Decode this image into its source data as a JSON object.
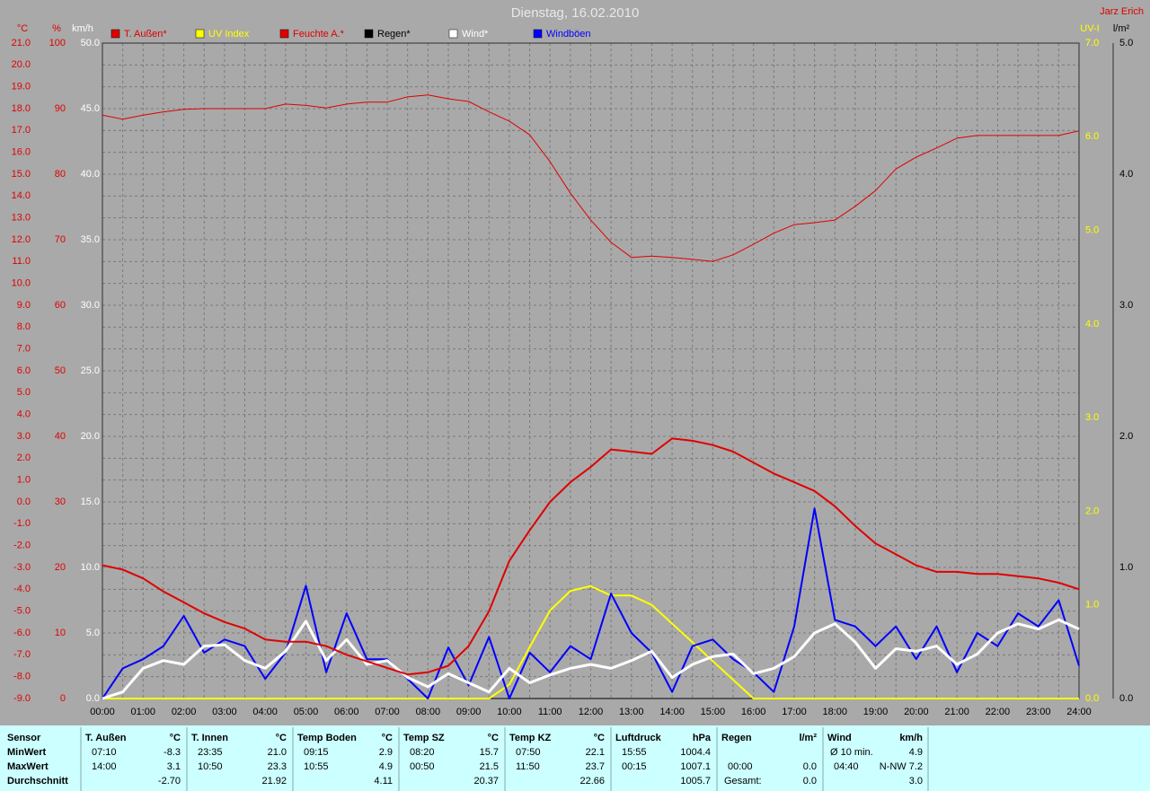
{
  "chart_data": {
    "type": "line",
    "title": "Dienstag, 16.02.2010",
    "author": "Jarz Erich",
    "grid": true,
    "x": [
      "00:00",
      "00:30",
      "01:00",
      "01:30",
      "02:00",
      "02:30",
      "03:00",
      "03:30",
      "04:00",
      "04:30",
      "05:00",
      "05:30",
      "06:00",
      "06:30",
      "07:00",
      "07:30",
      "08:00",
      "08:30",
      "09:00",
      "09:30",
      "10:00",
      "10:30",
      "11:00",
      "11:30",
      "12:00",
      "12:30",
      "13:00",
      "13:30",
      "14:00",
      "14:30",
      "15:00",
      "15:30",
      "16:00",
      "16:30",
      "17:00",
      "17:30",
      "18:00",
      "18:30",
      "19:00",
      "19:30",
      "20:00",
      "20:30",
      "21:00",
      "21:30",
      "22:00",
      "22:30",
      "23:00",
      "23:30",
      "24:00"
    ],
    "axes": [
      {
        "label": "°C",
        "color": "#e00000",
        "lim": [
          -9,
          21
        ],
        "ticks": [
          {
            "value": -9,
            "label": "-9.0"
          },
          {
            "value": -8,
            "label": "-8.0"
          },
          {
            "value": -7,
            "label": "-7.0"
          },
          {
            "value": -6,
            "label": "-6.0"
          },
          {
            "value": -5,
            "label": "-5.0"
          },
          {
            "value": -4,
            "label": "-4.0"
          },
          {
            "value": -3,
            "label": "-3.0"
          },
          {
            "value": -2,
            "label": "-2.0"
          },
          {
            "value": -1,
            "label": "-1.0"
          },
          {
            "value": 0,
            "label": "0.0"
          },
          {
            "value": 1,
            "label": "1.0"
          },
          {
            "value": 2,
            "label": "2.0"
          },
          {
            "value": 3,
            "label": "3.0"
          },
          {
            "value": 4,
            "label": "4.0"
          },
          {
            "value": 5,
            "label": "5.0"
          },
          {
            "value": 6,
            "label": "6.0"
          },
          {
            "value": 7,
            "label": "7.0"
          },
          {
            "value": 8,
            "label": "8.0"
          },
          {
            "value": 9,
            "label": "9.0"
          },
          {
            "value": 10,
            "label": "10.0"
          },
          {
            "value": 11,
            "label": "11.0"
          },
          {
            "value": 12,
            "label": "12.0"
          },
          {
            "value": 13,
            "label": "13.0"
          },
          {
            "value": 14,
            "label": "14.0"
          },
          {
            "value": 15,
            "label": "15.0"
          },
          {
            "value": 16,
            "label": "16.0"
          },
          {
            "value": 17,
            "label": "17.0"
          },
          {
            "value": 18,
            "label": "18.0"
          },
          {
            "value": 19,
            "label": "19.0"
          },
          {
            "value": 20,
            "label": "20.0"
          },
          {
            "value": 21,
            "label": "21.0"
          }
        ]
      },
      {
        "label": "%",
        "color": "#e00000",
        "lim": [
          0,
          100
        ],
        "ticks": [
          0,
          10,
          20,
          30,
          40,
          50,
          60,
          70,
          80,
          90,
          100
        ]
      },
      {
        "label": "km/h",
        "color": "#ffffff",
        "lim": [
          0,
          50
        ],
        "ticks": [
          {
            "value": 0,
            "label": "0.0"
          },
          {
            "value": 5,
            "label": "5.0"
          },
          {
            "value": 10,
            "label": "10.0"
          },
          {
            "value": 15,
            "label": "15.0"
          },
          {
            "value": 20,
            "label": "20.0"
          },
          {
            "value": 25,
            "label": "25.0"
          },
          {
            "value": 30,
            "label": "30.0"
          },
          {
            "value": 35,
            "label": "35.0"
          },
          {
            "value": 40,
            "label": "40.0"
          },
          {
            "value": 45,
            "label": "45.0"
          },
          {
            "value": 50,
            "label": "50.0"
          }
        ]
      },
      {
        "label": "UV-I",
        "color": "#ffff00",
        "lim": [
          0,
          7
        ],
        "ticks": [
          {
            "value": 0,
            "label": "0.0"
          },
          {
            "value": 1,
            "label": "1.0"
          },
          {
            "value": 2,
            "label": "2.0"
          },
          {
            "value": 3,
            "label": "3.0"
          },
          {
            "value": 4,
            "label": "4.0"
          },
          {
            "value": 5,
            "label": "5.0"
          },
          {
            "value": 6,
            "label": "6.0"
          },
          {
            "value": 7,
            "label": "7.0"
          }
        ]
      },
      {
        "label": "l/m²",
        "color": "#000000",
        "lim": [
          0,
          5
        ],
        "ticks": [
          {
            "value": 0,
            "label": "0.0"
          },
          {
            "value": 1,
            "label": "1.0"
          },
          {
            "value": 2,
            "label": "2.0"
          },
          {
            "value": 3,
            "label": "3.0"
          },
          {
            "value": 4,
            "label": "4.0"
          },
          {
            "value": 5,
            "label": "5.0"
          }
        ]
      }
    ],
    "series": [
      {
        "name": "T. Außen*",
        "color": "#e00000",
        "axis": 0,
        "values": [
          -2.9,
          -3.1,
          -3.5,
          -4.1,
          -4.6,
          -5.1,
          -5.5,
          -5.8,
          -6.3,
          -6.4,
          -6.4,
          -6.6,
          -7.0,
          -7.3,
          -7.6,
          -7.9,
          -7.8,
          -7.5,
          -6.6,
          -5.0,
          -2.7,
          -1.3,
          0.0,
          0.9,
          1.6,
          2.4,
          2.3,
          2.2,
          2.9,
          2.8,
          2.6,
          2.3,
          1.8,
          1.3,
          0.9,
          0.5,
          -0.2,
          -1.1,
          -1.9,
          -2.4,
          -2.9,
          -3.2,
          -3.2,
          -3.3,
          -3.3,
          -3.4,
          -3.5,
          -3.7,
          -4.0
        ]
      },
      {
        "name": "UV Index",
        "color": "#ffff00",
        "axis": 3,
        "values": [
          0,
          0,
          0,
          0,
          0,
          0,
          0,
          0,
          0,
          0,
          0,
          0,
          0,
          0,
          0,
          0,
          0,
          0,
          0,
          0,
          0.15,
          0.55,
          0.94,
          1.15,
          1.2,
          1.1,
          1.1,
          1.0,
          0.8,
          0.6,
          0.4,
          0.2,
          0,
          0,
          0,
          0,
          0,
          0,
          0,
          0,
          0,
          0,
          0,
          0,
          0,
          0,
          0,
          0,
          0
        ]
      },
      {
        "name": "Feuchte A.*",
        "color": "#e00000",
        "axis": 1,
        "values": [
          89.0,
          88.4,
          89.0,
          89.5,
          89.9,
          90.0,
          90.0,
          90.0,
          90.0,
          90.7,
          90.5,
          90.1,
          90.7,
          91.0,
          91.0,
          91.8,
          92.1,
          91.5,
          91.1,
          89.5,
          88.1,
          86.0,
          81.9,
          77.1,
          73.0,
          69.6,
          67.3,
          67.5,
          67.3,
          67.0,
          66.7,
          67.7,
          69.3,
          71.0,
          72.3,
          72.6,
          73.0,
          75.1,
          77.5,
          80.8,
          82.6,
          84.0,
          85.5,
          85.9,
          85.9,
          85.9,
          85.9,
          85.9,
          86.6
        ]
      },
      {
        "name": "Regen*",
        "color": "#000000",
        "axis": 4,
        "values": [
          0,
          0,
          0,
          0,
          0,
          0,
          0,
          0,
          0,
          0,
          0,
          0,
          0,
          0,
          0,
          0,
          0,
          0,
          0,
          0,
          0,
          0,
          0,
          0,
          0,
          0,
          0,
          0,
          0,
          0,
          0,
          0,
          0,
          0,
          0,
          0,
          0,
          0,
          0,
          0,
          0,
          0,
          0,
          0,
          0,
          0,
          0,
          0,
          0
        ]
      },
      {
        "name": "Wind*",
        "color": "#ffffff",
        "axis": 2,
        "values": [
          0,
          0.5,
          2.3,
          2.9,
          2.6,
          4.0,
          4.1,
          2.9,
          2.3,
          3.6,
          5.9,
          2.9,
          4.5,
          2.6,
          2.9,
          1.6,
          0.9,
          1.9,
          1.2,
          0.5,
          2.3,
          1.2,
          1.8,
          2.3,
          2.6,
          2.3,
          2.9,
          3.6,
          1.6,
          2.6,
          3.2,
          3.4,
          1.9,
          2.3,
          3.2,
          5.0,
          5.7,
          4.3,
          2.3,
          3.8,
          3.6,
          4.0,
          2.6,
          3.4,
          5.0,
          5.7,
          5.3,
          6.0,
          5.3
        ]
      },
      {
        "name": "Windböen",
        "color": "#0000ff",
        "axis": 2,
        "values": [
          0,
          2.3,
          3.0,
          4.0,
          6.3,
          3.5,
          4.5,
          4.0,
          1.5,
          3.5,
          8.6,
          2.0,
          6.5,
          3.0,
          3.0,
          1.5,
          0,
          3.9,
          1.0,
          4.7,
          0,
          3.5,
          2.0,
          4.0,
          3.0,
          8.0,
          5.0,
          3.5,
          0.5,
          4.0,
          4.5,
          3.0,
          2.0,
          0.5,
          5.5,
          14.5,
          6.0,
          5.5,
          4.0,
          5.5,
          3.0,
          5.5,
          2.0,
          5.0,
          4.0,
          6.5,
          5.5,
          7.5,
          2.5
        ]
      }
    ]
  },
  "table": {
    "row_labels": [
      "Sensor",
      "MinWert",
      "MaxWert",
      "Durchschnitt"
    ],
    "groups": [
      {
        "name": "T. Außen",
        "unit": "°C",
        "rows": [
          [
            "07:10",
            "-8.3"
          ],
          [
            "14:00",
            "3.1"
          ],
          [
            null,
            "-2.70"
          ]
        ]
      },
      {
        "name": "T. Innen",
        "unit": "°C",
        "rows": [
          [
            "23:35",
            "21.0"
          ],
          [
            "10:50",
            "23.3"
          ],
          [
            null,
            "21.92"
          ]
        ]
      },
      {
        "name": "Temp Boden",
        "unit": "°C",
        "rows": [
          [
            "09:15",
            "2.9"
          ],
          [
            "10:55",
            "4.9"
          ],
          [
            null,
            "4.11"
          ]
        ]
      },
      {
        "name": "Temp SZ",
        "unit": "°C",
        "rows": [
          [
            "08:20",
            "15.7"
          ],
          [
            "00:50",
            "21.5"
          ],
          [
            null,
            "20.37"
          ]
        ]
      },
      {
        "name": "Temp KZ",
        "unit": "°C",
        "rows": [
          [
            "07:50",
            "22.1"
          ],
          [
            "11:50",
            "23.7"
          ],
          [
            null,
            "22.66"
          ]
        ]
      },
      {
        "name": "Luftdruck",
        "unit": "hPa",
        "rows": [
          [
            "15:55",
            "1004.4"
          ],
          [
            "00:15",
            "1007.1"
          ],
          [
            null,
            "1005.7"
          ]
        ]
      },
      {
        "name": "Regen",
        "unit": "l/m²",
        "rows": [
          [
            null,
            null
          ],
          [
            "00:00",
            "0.0"
          ],
          [
            "Gesamt:",
            "0.0"
          ]
        ]
      },
      {
        "name": "Wind",
        "unit": "km/h",
        "rows": [
          [
            "Ø 10 min.",
            "4.9"
          ],
          [
            "04:40",
            "N-NW 7.2"
          ],
          [
            null,
            "3.0"
          ]
        ]
      }
    ]
  }
}
